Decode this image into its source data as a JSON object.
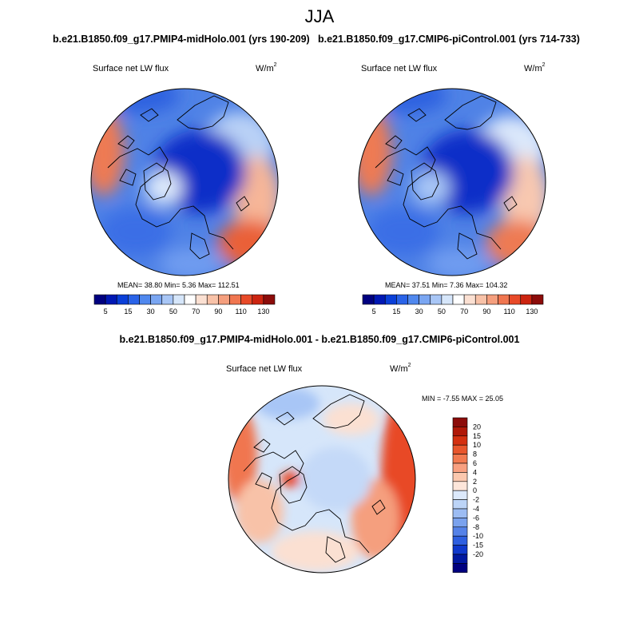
{
  "season": "JJA",
  "panels": [
    {
      "case_title": "b.e21.B1850.f09_g17.PMIP4-midHolo.001 (yrs 190-209)",
      "variable": "Surface net LW flux",
      "units_base": "W/m",
      "units_exp": "2",
      "stats_text": "MEAN=  38.80  Min=   5.36  Max= 112.51",
      "mean": 38.8,
      "min": 5.36,
      "max": 112.51
    },
    {
      "case_title": "b.e21.B1850.f09_g17.CMIP6-piControl.001 (yrs 714-733)",
      "variable": "Surface net LW flux",
      "units_base": "W/m",
      "units_exp": "2",
      "stats_text": "MEAN=  37.51  Min=   7.36  Max= 104.32",
      "mean": 37.51,
      "min": 7.36,
      "max": 104.32
    }
  ],
  "diff_panel": {
    "title": "b.e21.B1850.f09_g17.PMIP4-midHolo.001 - b.e21.B1850.f09_g17.CMIP6-piControl.001",
    "variable": "Surface net LW flux",
    "units_base": "W/m",
    "units_exp": "2",
    "stats_text": "MIN =  -7.55 MAX =  25.05",
    "min": -7.55,
    "max": 25.05
  },
  "colorbar_h": {
    "colors": [
      "#000080",
      "#0018b4",
      "#0a3fd8",
      "#2a63e8",
      "#5088ee",
      "#7aa6f2",
      "#a8c6f6",
      "#d6e6fa",
      "#ffffff",
      "#fbe0d2",
      "#f8c2a8",
      "#f59f7e",
      "#f07650",
      "#e84a28",
      "#cc2410",
      "#8c0c0a"
    ],
    "tick_labels": [
      "5",
      "15",
      "30",
      "50",
      "70",
      "90",
      "110",
      "130"
    ]
  },
  "colorbar_v": {
    "colors": [
      "#8c0c0a",
      "#b01808",
      "#d43010",
      "#e8562c",
      "#f27a50",
      "#f8a080",
      "#fbc8ae",
      "#fde6da",
      "#dce9fb",
      "#bcd4f7",
      "#9cbcf3",
      "#7aa2ee",
      "#5582e8",
      "#2e5fe0",
      "#0f38cc",
      "#0018a0",
      "#000080"
    ],
    "tick_labels": [
      "20",
      "15",
      "10",
      "8",
      "6",
      "4",
      "2",
      "0",
      "-2",
      "-4",
      "-6",
      "-8",
      "-10",
      "-15",
      "-20"
    ]
  }
}
